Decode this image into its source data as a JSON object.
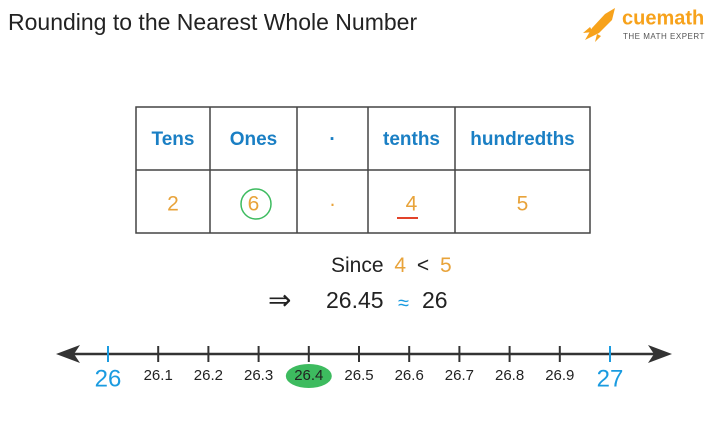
{
  "header": {
    "title": "Rounding to the Nearest Whole Number"
  },
  "logo": {
    "brand": "cuemath",
    "tagline": "THE MATH EXPERT"
  },
  "table": {
    "headers": [
      "Tens",
      "Ones",
      "·",
      "tenths",
      "hundredths"
    ],
    "row": [
      "2",
      "6",
      "·",
      "4",
      "5"
    ]
  },
  "comparison": {
    "lead": "Since",
    "left": "4",
    "operator": "<",
    "right": "5"
  },
  "result": {
    "arrow": "⇒",
    "number": "26.45",
    "approx": "≈",
    "rounded": "26"
  },
  "number_line": {
    "labels": [
      "26",
      "26.1",
      "26.2",
      "26.3",
      "26.4",
      "26.5",
      "26.6",
      "26.7",
      "26.8",
      "26.9",
      "27"
    ]
  }
}
